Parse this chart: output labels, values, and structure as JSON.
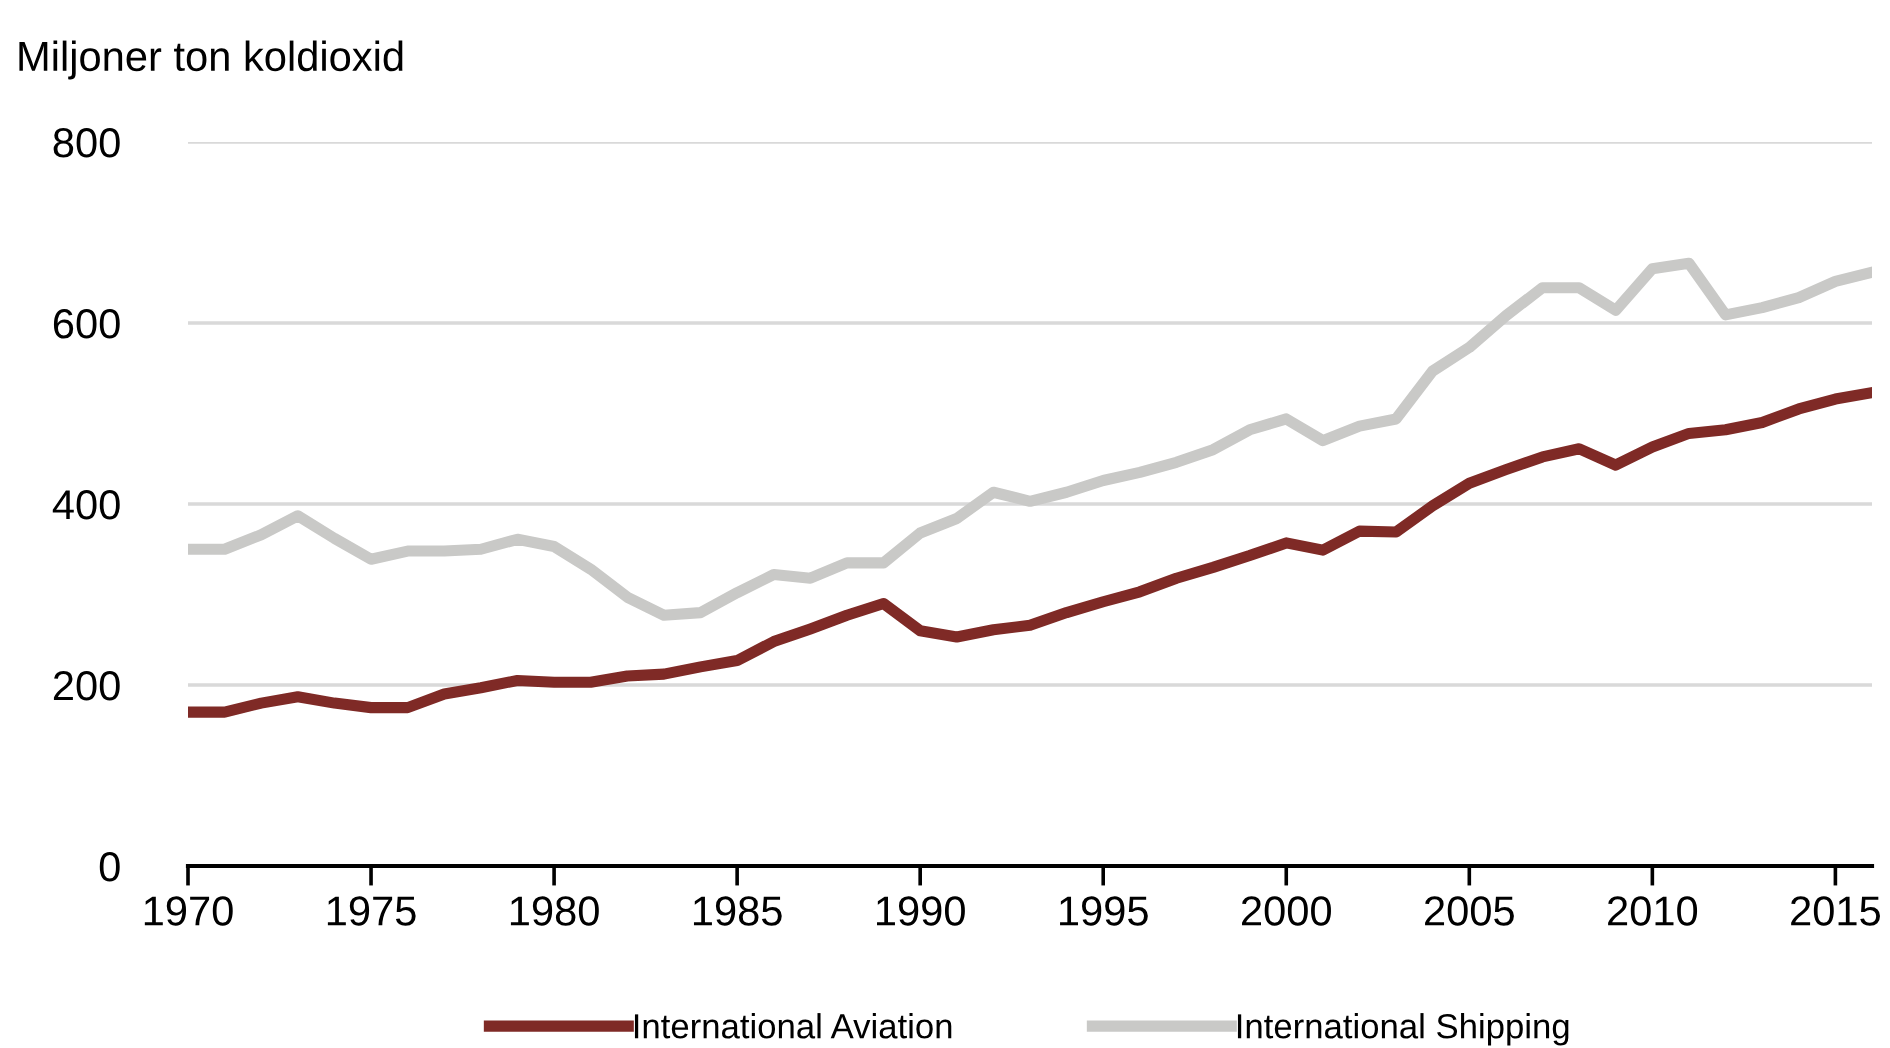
{
  "chart_data": {
    "type": "line",
    "ylabel": "Miljoner ton koldioxid",
    "x": [
      1970,
      1971,
      1972,
      1973,
      1974,
      1975,
      1976,
      1977,
      1978,
      1979,
      1980,
      1981,
      1982,
      1983,
      1984,
      1985,
      1986,
      1987,
      1988,
      1989,
      1990,
      1991,
      1992,
      1993,
      1994,
      1995,
      1996,
      1997,
      1998,
      1999,
      2000,
      2001,
      2002,
      2003,
      2004,
      2005,
      2006,
      2007,
      2008,
      2009,
      2010,
      2011,
      2012,
      2013,
      2014,
      2015,
      2016
    ],
    "series": [
      {
        "name": "International Aviation",
        "color": "#7f2a26",
        "values": [
          170,
          170,
          180,
          187,
          180,
          175,
          175,
          190,
          197,
          205,
          203,
          203,
          210,
          212,
          220,
          227,
          248,
          262,
          277,
          290,
          260,
          253,
          261,
          266,
          280,
          292,
          303,
          318,
          330,
          343,
          357,
          349,
          370,
          369,
          398,
          423,
          438,
          452,
          461,
          443,
          463,
          478,
          482,
          490,
          505,
          516,
          523
        ]
      },
      {
        "name": "International Shipping",
        "color": "#c9c9c7",
        "values": [
          350,
          350,
          366,
          387,
          362,
          339,
          348,
          348,
          350,
          361,
          353,
          328,
          297,
          277,
          280,
          302,
          322,
          318,
          335,
          335,
          368,
          384,
          413,
          403,
          413,
          426,
          435,
          446,
          460,
          482,
          494,
          470,
          486,
          494,
          547,
          573,
          608,
          639,
          639,
          614,
          660,
          666,
          609,
          617,
          628,
          646,
          656
        ]
      }
    ],
    "xlim": [
      1970,
      2016
    ],
    "xticks": [
      1970,
      1975,
      1980,
      1985,
      1990,
      1995,
      2000,
      2005,
      2010,
      2015
    ],
    "ylim": [
      0,
      800
    ],
    "yticks": [
      0,
      200,
      400,
      600,
      800
    ],
    "grid": "y",
    "legend": "bottom",
    "marker": "none",
    "line_style": "solid"
  }
}
